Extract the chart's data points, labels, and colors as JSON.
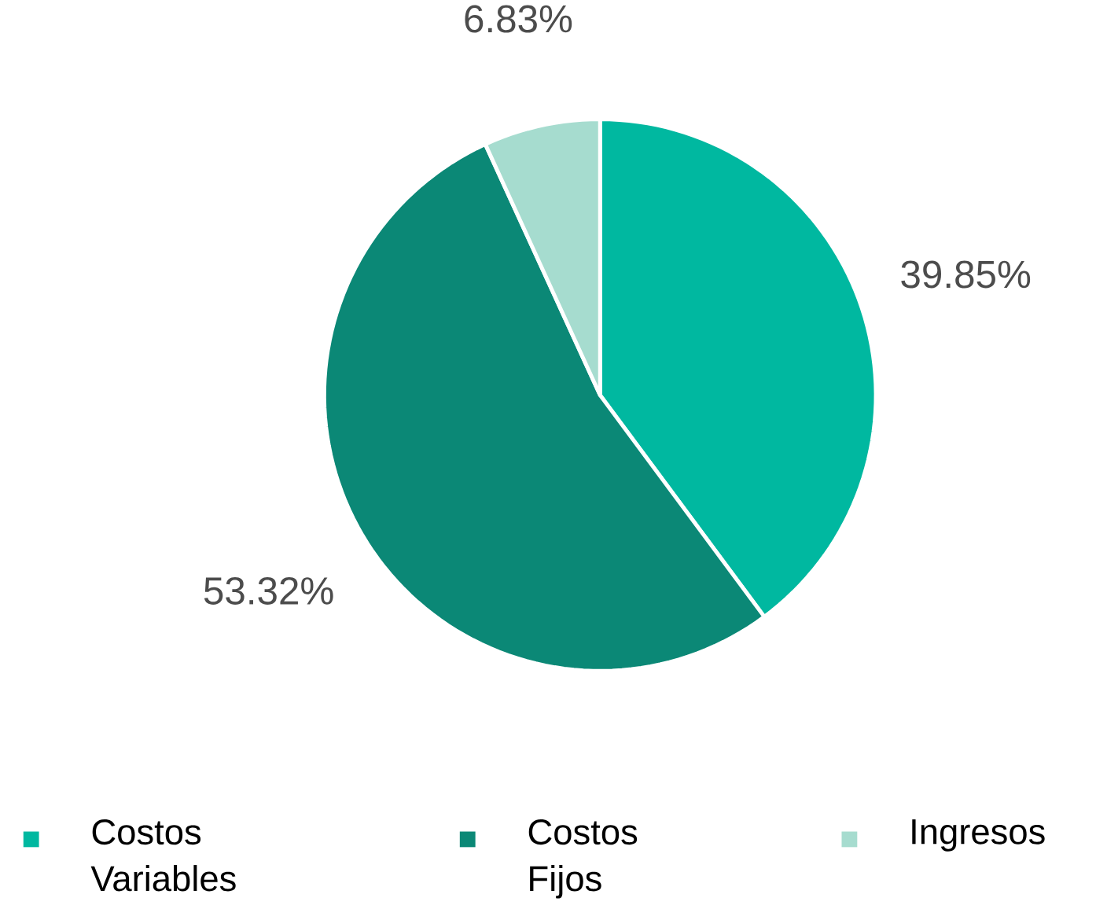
{
  "chart_data": {
    "type": "pie",
    "categories": [
      "Costos Variables",
      "Costos Fijos",
      "Ingresos"
    ],
    "values": [
      39.85,
      53.32,
      6.83
    ],
    "value_labels": [
      "39.85%",
      "53.32%",
      "6.83%"
    ],
    "colors": [
      "#00b8a0",
      "#0b8876",
      "#a6dccf"
    ],
    "legend": "bottom"
  }
}
